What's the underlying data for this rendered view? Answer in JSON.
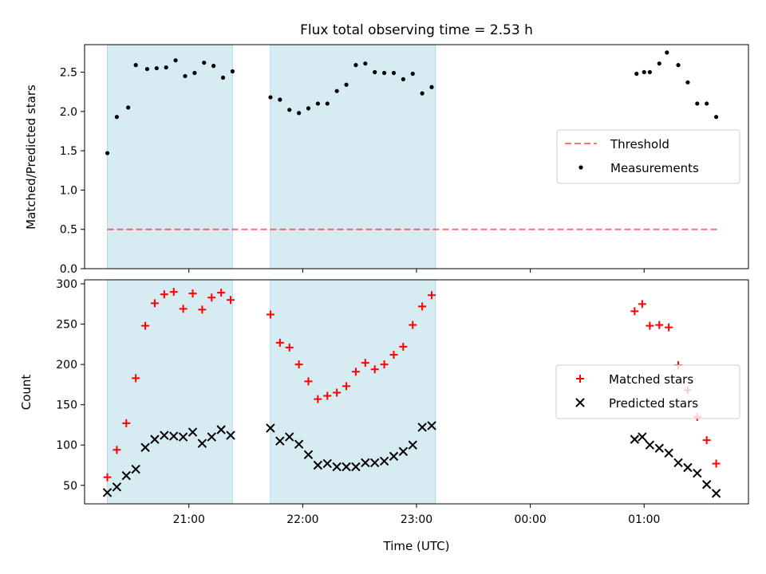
{
  "chart_data": {
    "type": "scatter",
    "title": "Flux total observing time = 2.53 h",
    "xlabel": "Time (UTC)",
    "xlim": [
      "2024-01-01T20:05",
      "2024-01-02T01:55"
    ],
    "xticks": [
      {
        "t": "2024-01-01T21:00",
        "label": "21:00"
      },
      {
        "t": "2024-01-01T22:00",
        "label": "22:00"
      },
      {
        "t": "2024-01-01T23:00",
        "label": "23:00"
      },
      {
        "t": "2024-01-02T00:00",
        "label": "00:00"
      },
      {
        "t": "2024-01-02T01:00",
        "label": "01:00"
      }
    ],
    "shaded_intervals": [
      [
        "2024-01-01T20:17",
        "2024-01-01T21:23"
      ],
      [
        "2024-01-01T21:43",
        "2024-01-01T23:10"
      ]
    ],
    "shade_color": "#add8e6",
    "top_panel": {
      "ylabel": "Matched/Predicted stars",
      "ylim": [
        0,
        2.85
      ],
      "yticks": [
        "0.0",
        "0.5",
        "1.0",
        "1.5",
        "2.0",
        "2.5"
      ],
      "legend_position": "center-right",
      "threshold": {
        "name": "Threshold",
        "value": 0.5,
        "x_start": "2024-01-01T20:17",
        "x_end": "2024-01-02T01:40",
        "color": "#ff0000"
      },
      "series": [
        {
          "name": "Measurements",
          "marker": "dot",
          "color": "#000000",
          "points": [
            [
              "2024-01-01T20:17",
              1.47
            ],
            [
              "2024-01-01T20:22",
              1.93
            ],
            [
              "2024-01-01T20:28",
              2.05
            ],
            [
              "2024-01-01T20:32",
              2.59
            ],
            [
              "2024-01-01T20:38",
              2.54
            ],
            [
              "2024-01-01T20:43",
              2.55
            ],
            [
              "2024-01-01T20:48",
              2.56
            ],
            [
              "2024-01-01T20:53",
              2.65
            ],
            [
              "2024-01-01T20:58",
              2.45
            ],
            [
              "2024-01-01T21:03",
              2.49
            ],
            [
              "2024-01-01T21:08",
              2.62
            ],
            [
              "2024-01-01T21:13",
              2.58
            ],
            [
              "2024-01-01T21:18",
              2.43
            ],
            [
              "2024-01-01T21:23",
              2.51
            ],
            [
              "2024-01-01T21:43",
              2.18
            ],
            [
              "2024-01-01T21:48",
              2.15
            ],
            [
              "2024-01-01T21:53",
              2.02
            ],
            [
              "2024-01-01T21:58",
              1.98
            ],
            [
              "2024-01-01T22:03",
              2.04
            ],
            [
              "2024-01-01T22:08",
              2.1
            ],
            [
              "2024-01-01T22:13",
              2.1
            ],
            [
              "2024-01-01T22:18",
              2.26
            ],
            [
              "2024-01-01T22:23",
              2.34
            ],
            [
              "2024-01-01T22:28",
              2.59
            ],
            [
              "2024-01-01T22:33",
              2.61
            ],
            [
              "2024-01-01T22:38",
              2.5
            ],
            [
              "2024-01-01T22:43",
              2.49
            ],
            [
              "2024-01-01T22:48",
              2.49
            ],
            [
              "2024-01-01T22:53",
              2.41
            ],
            [
              "2024-01-01T22:58",
              2.48
            ],
            [
              "2024-01-01T23:03",
              2.23
            ],
            [
              "2024-01-01T23:08",
              2.31
            ],
            [
              "2024-01-02T00:56",
              2.48
            ],
            [
              "2024-01-02T01:00",
              2.5
            ],
            [
              "2024-01-02T01:03",
              2.5
            ],
            [
              "2024-01-02T01:08",
              2.61
            ],
            [
              "2024-01-02T01:12",
              2.75
            ],
            [
              "2024-01-02T01:18",
              2.59
            ],
            [
              "2024-01-02T01:23",
              2.37
            ],
            [
              "2024-01-02T01:28",
              2.1
            ],
            [
              "2024-01-02T01:33",
              2.1
            ],
            [
              "2024-01-02T01:38",
              1.93
            ]
          ]
        }
      ]
    },
    "bottom_panel": {
      "ylabel": "Count",
      "ylim": [
        27,
        305
      ],
      "yticks": [
        "50",
        "100",
        "150",
        "200",
        "250",
        "300"
      ],
      "legend_position": "center-right",
      "series": [
        {
          "name": "Matched stars",
          "marker": "plus",
          "color": "#ff0000",
          "points": [
            [
              "2024-01-01T20:17",
              60
            ],
            [
              "2024-01-01T20:22",
              94
            ],
            [
              "2024-01-01T20:27",
              127
            ],
            [
              "2024-01-01T20:32",
              183
            ],
            [
              "2024-01-01T20:37",
              248
            ],
            [
              "2024-01-01T20:42",
              276
            ],
            [
              "2024-01-01T20:47",
              287
            ],
            [
              "2024-01-01T20:52",
              290
            ],
            [
              "2024-01-01T20:57",
              269
            ],
            [
              "2024-01-01T21:02",
              288
            ],
            [
              "2024-01-01T21:07",
              268
            ],
            [
              "2024-01-01T21:12",
              283
            ],
            [
              "2024-01-01T21:17",
              289
            ],
            [
              "2024-01-01T21:22",
              280
            ],
            [
              "2024-01-01T21:43",
              262
            ],
            [
              "2024-01-01T21:48",
              227
            ],
            [
              "2024-01-01T21:53",
              221
            ],
            [
              "2024-01-01T21:58",
              200
            ],
            [
              "2024-01-01T22:03",
              179
            ],
            [
              "2024-01-01T22:08",
              157
            ],
            [
              "2024-01-01T22:13",
              161
            ],
            [
              "2024-01-01T22:18",
              165
            ],
            [
              "2024-01-01T22:23",
              173
            ],
            [
              "2024-01-01T22:28",
              191
            ],
            [
              "2024-01-01T22:33",
              202
            ],
            [
              "2024-01-01T22:38",
              194
            ],
            [
              "2024-01-01T22:43",
              200
            ],
            [
              "2024-01-01T22:48",
              212
            ],
            [
              "2024-01-01T22:53",
              222
            ],
            [
              "2024-01-01T22:58",
              249
            ],
            [
              "2024-01-01T23:03",
              272
            ],
            [
              "2024-01-01T23:08",
              286
            ],
            [
              "2024-01-02T00:55",
              266
            ],
            [
              "2024-01-02T00:59",
              275
            ],
            [
              "2024-01-02T01:03",
              248
            ],
            [
              "2024-01-02T01:08",
              249
            ],
            [
              "2024-01-02T01:13",
              246
            ],
            [
              "2024-01-02T01:18",
              199
            ],
            [
              "2024-01-02T01:23",
              168
            ],
            [
              "2024-01-02T01:28",
              135
            ],
            [
              "2024-01-02T01:33",
              106
            ],
            [
              "2024-01-02T01:38",
              77
            ]
          ]
        },
        {
          "name": "Predicted stars",
          "marker": "x",
          "color": "#000000",
          "points": [
            [
              "2024-01-01T20:17",
              41
            ],
            [
              "2024-01-01T20:22",
              48
            ],
            [
              "2024-01-01T20:27",
              62
            ],
            [
              "2024-01-01T20:32",
              70
            ],
            [
              "2024-01-01T20:37",
              97
            ],
            [
              "2024-01-01T20:42",
              107
            ],
            [
              "2024-01-01T20:47",
              112
            ],
            [
              "2024-01-01T20:52",
              111
            ],
            [
              "2024-01-01T20:57",
              110
            ],
            [
              "2024-01-01T21:02",
              116
            ],
            [
              "2024-01-01T21:07",
              102
            ],
            [
              "2024-01-01T21:12",
              110
            ],
            [
              "2024-01-01T21:17",
              119
            ],
            [
              "2024-01-01T21:22",
              112
            ],
            [
              "2024-01-01T21:43",
              121
            ],
            [
              "2024-01-01T21:48",
              105
            ],
            [
              "2024-01-01T21:53",
              110
            ],
            [
              "2024-01-01T21:58",
              101
            ],
            [
              "2024-01-01T22:03",
              88
            ],
            [
              "2024-01-01T22:08",
              75
            ],
            [
              "2024-01-01T22:13",
              77
            ],
            [
              "2024-01-01T22:18",
              73
            ],
            [
              "2024-01-01T22:23",
              73
            ],
            [
              "2024-01-01T22:28",
              73
            ],
            [
              "2024-01-01T22:33",
              78
            ],
            [
              "2024-01-01T22:38",
              78
            ],
            [
              "2024-01-01T22:43",
              80
            ],
            [
              "2024-01-01T22:48",
              86
            ],
            [
              "2024-01-01T22:53",
              92
            ],
            [
              "2024-01-01T22:58",
              100
            ],
            [
              "2024-01-01T23:03",
              122
            ],
            [
              "2024-01-01T23:08",
              124
            ],
            [
              "2024-01-02T00:55",
              107
            ],
            [
              "2024-01-02T00:59",
              110
            ],
            [
              "2024-01-02T01:03",
              100
            ],
            [
              "2024-01-02T01:08",
              96
            ],
            [
              "2024-01-02T01:13",
              90
            ],
            [
              "2024-01-02T01:18",
              78
            ],
            [
              "2024-01-02T01:23",
              72
            ],
            [
              "2024-01-02T01:28",
              65
            ],
            [
              "2024-01-02T01:33",
              51
            ],
            [
              "2024-01-02T01:38",
              40
            ]
          ]
        }
      ]
    }
  }
}
